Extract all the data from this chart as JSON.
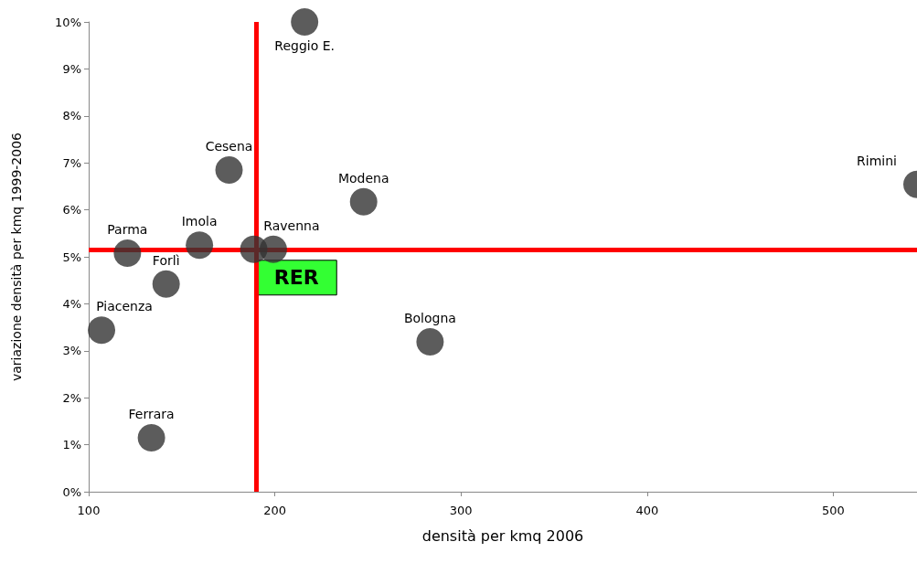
{
  "chart_data": {
    "type": "scatter",
    "xlabel": "densità per kmq 2006",
    "ylabel": "variazione densità per kmq 1999-2006",
    "x": [
      216,
      175.4,
      247.7,
      545,
      120.8,
      159.5,
      188.7,
      199.2,
      141.6,
      106.9,
      283.4,
      133.7
    ],
    "series": [
      {
        "color": "#333333",
        "values": [
          10.0,
          6.85,
          6.17,
          6.54,
          5.08,
          5.25,
          5.16,
          5.16,
          4.42,
          3.44,
          3.19,
          1.15
        ]
      }
    ],
    "xlim": [
      100,
      545
    ],
    "xticks": [
      100,
      200,
      300,
      400,
      500
    ],
    "ylim": [
      0,
      10
    ],
    "yticks": [
      {
        "value": 0,
        "label": "0%"
      },
      {
        "value": 1,
        "label": "1%"
      },
      {
        "value": 2,
        "label": "2%"
      },
      {
        "value": 3,
        "label": "3%"
      },
      {
        "value": 4,
        "label": "4%"
      },
      {
        "value": 5,
        "label": "5%"
      },
      {
        "value": 6,
        "label": "6%"
      },
      {
        "value": 7,
        "label": "7%"
      },
      {
        "value": 8,
        "label": "8%"
      },
      {
        "value": 9,
        "label": "9%"
      },
      {
        "value": 10,
        "label": "10%"
      }
    ],
    "grid": false,
    "marker": "circle",
    "ref_lines": [
      {
        "axis": "x",
        "value": 190,
        "label": "RER",
        "color": "#ff0000"
      },
      {
        "axis": "y",
        "value": 5.16,
        "color": "#ff0000"
      }
    ],
    "annotations": [
      {
        "text": "Reggio E.",
        "x": 216,
        "y": 10.0
      },
      {
        "text": "Cesena",
        "x": 175.4,
        "y": 6.85
      },
      {
        "text": "Modena",
        "x": 247.7,
        "y": 6.17
      },
      {
        "text": "Rimini",
        "x": 545,
        "y": 6.54
      },
      {
        "text": "Parma",
        "x": 120.8,
        "y": 5.08
      },
      {
        "text": "Imola",
        "x": 159.5,
        "y": 5.25
      },
      {
        "text": "Ravenna",
        "x": 199.2,
        "y": 5.16
      },
      {
        "text": "Forlì",
        "x": 141.6,
        "y": 4.42
      },
      {
        "text": "Piacenza",
        "x": 106.9,
        "y": 3.44
      },
      {
        "text": "Bologna",
        "x": 283.4,
        "y": 3.19
      },
      {
        "text": "Ferrara",
        "x": 133.7,
        "y": 1.15
      }
    ]
  }
}
